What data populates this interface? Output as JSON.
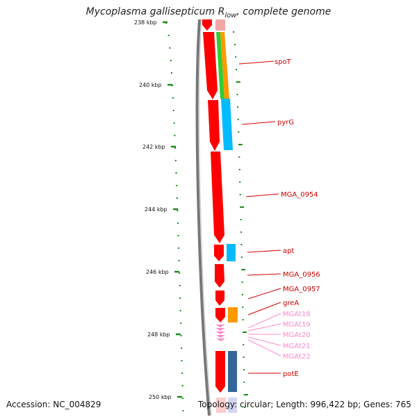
{
  "title": {
    "organism": "Mycoplasma gallisepticum R",
    "strain_sub": "low",
    "suffix": ", complete genome"
  },
  "footer": {
    "accession": "Accession: NC_004829",
    "topology": "Topology: circular; Length: 996,422 bp; Genes: 765"
  },
  "colors": {
    "tick": "#1a8a1a",
    "gene_cds": "#ff0000",
    "gene_rna": "#ff88cc",
    "label_red": "#d00000",
    "label_pink": "#ff88cc",
    "cat_orange": "#ff9900",
    "cat_green": "#33cc33",
    "cat_cyan": "#00bbff",
    "cat_steel": "#336699",
    "backbone": "#777777"
  },
  "axis": {
    "ticks": [
      "238 kbp",
      "240 kbp",
      "242 kbp",
      "244 kbp",
      "246 kbp",
      "248 kbp",
      "250 kbp"
    ],
    "range_kbp": [
      238,
      250
    ]
  },
  "genes": [
    {
      "label": "spoT",
      "type": "CDS",
      "strand": "+",
      "category": "orange+green"
    },
    {
      "label": "pyrG",
      "type": "CDS",
      "strand": "+",
      "category": "cyan"
    },
    {
      "label": "MGA_0954",
      "type": "CDS",
      "strand": "+",
      "category": ""
    },
    {
      "label": "apt",
      "type": "CDS",
      "strand": "+",
      "category": "cyan"
    },
    {
      "label": "MGA_0956",
      "type": "CDS",
      "strand": "+",
      "category": ""
    },
    {
      "label": "MGA_0957",
      "type": "CDS",
      "strand": "+",
      "category": ""
    },
    {
      "label": "greA",
      "type": "CDS",
      "strand": "+",
      "category": "orange"
    },
    {
      "label": "MGAt18",
      "type": "tRNA",
      "strand": "+",
      "category": ""
    },
    {
      "label": "MGAt19",
      "type": "tRNA",
      "strand": "+",
      "category": ""
    },
    {
      "label": "MGAt20",
      "type": "tRNA",
      "strand": "+",
      "category": ""
    },
    {
      "label": "MGAt21",
      "type": "tRNA",
      "strand": "+",
      "category": ""
    },
    {
      "label": "MGAt22",
      "type": "tRNA",
      "strand": "+",
      "category": ""
    },
    {
      "label": "potE",
      "type": "CDS",
      "strand": "+",
      "category": "steel"
    }
  ]
}
